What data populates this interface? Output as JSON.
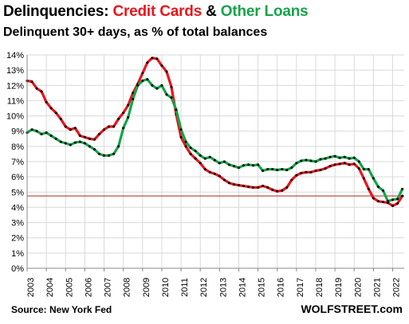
{
  "header": {
    "title_prefix": "Delinquencies:",
    "series1_label": "Credit Cards",
    "connector": "&",
    "series2_label": "Other Loans",
    "subtitle": "Delinquent 30+ days, as % of total balances"
  },
  "footer": {
    "source": "Source: New York Fed",
    "brand": "WOLFSTREET.com"
  },
  "colors": {
    "credit_cards": "#e8141c",
    "other_loans": "#16a34a",
    "markers": "#000000",
    "reference_line": "#b22222",
    "grid": "#d9d9d9"
  },
  "chart_data": {
    "type": "line",
    "title": "Delinquencies: Credit Cards & Other Loans",
    "subtitle": "Delinquent 30+ days, as % of total balances",
    "xlabel": "",
    "ylabel": "",
    "xlim": [
      2003,
      2022.6
    ],
    "ylim": [
      0,
      14
    ],
    "grid": true,
    "legend": "title",
    "x_ticks": [
      "2003",
      "2004",
      "2005",
      "2006",
      "2007",
      "2008",
      "2009",
      "2010",
      "2011",
      "2012",
      "2013",
      "2014",
      "2015",
      "2016",
      "2017",
      "2018",
      "2019",
      "2020",
      "2021",
      "2022"
    ],
    "y_ticks": [
      "0%",
      "1%",
      "2%",
      "3%",
      "4%",
      "5%",
      "6%",
      "7%",
      "8%",
      "9%",
      "10%",
      "11%",
      "12%",
      "13%",
      "14%"
    ],
    "reference_line": 4.75,
    "x": [
      2003.0,
      2003.25,
      2003.5,
      2003.75,
      2004.0,
      2004.25,
      2004.5,
      2004.75,
      2005.0,
      2005.25,
      2005.5,
      2005.75,
      2006.0,
      2006.25,
      2006.5,
      2006.75,
      2007.0,
      2007.25,
      2007.5,
      2007.75,
      2008.0,
      2008.25,
      2008.5,
      2008.75,
      2009.0,
      2009.25,
      2009.5,
      2009.75,
      2010.0,
      2010.25,
      2010.5,
      2010.75,
      2011.0,
      2011.25,
      2011.5,
      2011.75,
      2012.0,
      2012.25,
      2012.5,
      2012.75,
      2013.0,
      2013.25,
      2013.5,
      2013.75,
      2014.0,
      2014.25,
      2014.5,
      2014.75,
      2015.0,
      2015.25,
      2015.5,
      2015.75,
      2016.0,
      2016.25,
      2016.5,
      2016.75,
      2017.0,
      2017.25,
      2017.5,
      2017.75,
      2018.0,
      2018.25,
      2018.5,
      2018.75,
      2019.0,
      2019.25,
      2019.5,
      2019.75,
      2020.0,
      2020.25,
      2020.5,
      2020.75,
      2021.0,
      2021.25,
      2021.5,
      2021.75,
      2022.0,
      2022.25,
      2022.5
    ],
    "series": [
      {
        "name": "Credit Cards",
        "color": "#e8141c",
        "values": [
          12.3,
          12.25,
          11.8,
          11.6,
          10.9,
          10.5,
          10.2,
          9.8,
          9.3,
          9.1,
          9.2,
          8.7,
          8.6,
          8.5,
          8.45,
          8.8,
          9.1,
          9.3,
          9.3,
          9.8,
          10.2,
          10.7,
          11.5,
          12.1,
          12.8,
          13.5,
          13.8,
          13.75,
          13.3,
          12.9,
          11.9,
          10.1,
          8.6,
          8.0,
          7.5,
          7.2,
          6.9,
          6.5,
          6.3,
          6.2,
          6.05,
          5.8,
          5.6,
          5.5,
          5.45,
          5.4,
          5.35,
          5.3,
          5.3,
          5.4,
          5.3,
          5.15,
          5.05,
          5.1,
          5.3,
          5.8,
          6.1,
          6.25,
          6.3,
          6.3,
          6.4,
          6.45,
          6.55,
          6.7,
          6.8,
          6.85,
          6.9,
          6.8,
          6.85,
          6.55,
          5.9,
          5.2,
          4.6,
          4.4,
          4.35,
          4.3,
          4.1,
          4.25,
          4.75
        ]
      },
      {
        "name": "Other Loans",
        "color": "#16a34a",
        "values": [
          8.9,
          9.1,
          9.0,
          8.8,
          8.9,
          8.7,
          8.5,
          8.3,
          8.2,
          8.1,
          8.25,
          8.3,
          8.2,
          8.0,
          7.8,
          7.5,
          7.4,
          7.4,
          7.5,
          8.0,
          9.2,
          9.9,
          11.1,
          12.0,
          12.3,
          12.4,
          12.0,
          11.8,
          12.0,
          11.4,
          11.2,
          10.4,
          9.1,
          8.3,
          7.9,
          7.7,
          7.4,
          7.2,
          7.3,
          7.1,
          6.9,
          7.0,
          6.8,
          6.7,
          6.6,
          6.75,
          6.8,
          6.75,
          6.8,
          6.4,
          6.5,
          6.5,
          6.45,
          6.5,
          6.45,
          6.6,
          6.9,
          7.05,
          7.1,
          7.05,
          7.0,
          7.15,
          7.2,
          7.3,
          7.35,
          7.25,
          7.3,
          7.2,
          7.25,
          7.0,
          6.5,
          6.5,
          5.9,
          5.35,
          5.1,
          4.4,
          4.5,
          4.55,
          5.2
        ]
      }
    ]
  }
}
